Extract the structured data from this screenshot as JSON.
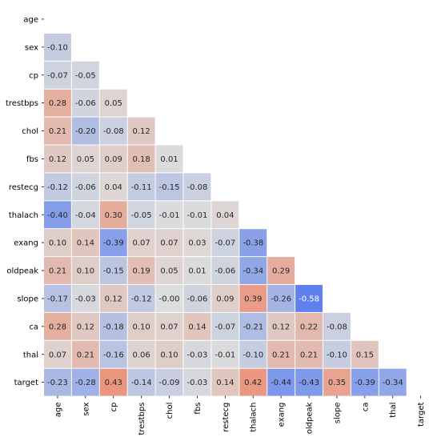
{
  "chart_data": {
    "type": "heatmap",
    "title": "",
    "xlabel": "",
    "ylabel": "",
    "mask": "upper-triangle-and-diagonal",
    "annotation_format": "0.00",
    "color_scale": {
      "min": -0.6,
      "center": 0.0,
      "max": 0.6,
      "low_color": "#5a7ef0",
      "mid_color": "#dcdddd",
      "high_color": "#f07a5a",
      "cmap": "coolwarm"
    },
    "labels": [
      "age",
      "sex",
      "cp",
      "trestbps",
      "chol",
      "fbs",
      "restecg",
      "thalach",
      "exang",
      "oldpeak",
      "slope",
      "ca",
      "thal",
      "target"
    ],
    "lower_triangle": [
      [],
      [
        -0.1
      ],
      [
        -0.07,
        -0.05
      ],
      [
        0.28,
        -0.06,
        0.05
      ],
      [
        0.21,
        -0.2,
        -0.08,
        0.12
      ],
      [
        0.12,
        0.05,
        0.09,
        0.18,
        0.01
      ],
      [
        -0.12,
        -0.06,
        0.04,
        -0.11,
        -0.15,
        -0.08
      ],
      [
        -0.4,
        -0.04,
        0.3,
        -0.05,
        -0.01,
        -0.01,
        0.04
      ],
      [
        0.1,
        0.14,
        -0.39,
        0.07,
        0.07,
        0.03,
        -0.07,
        -0.38
      ],
      [
        0.21,
        0.1,
        -0.15,
        0.19,
        0.05,
        0.01,
        -0.06,
        -0.34,
        0.29
      ],
      [
        -0.17,
        -0.03,
        0.12,
        -0.12,
        -0.0,
        -0.06,
        0.09,
        0.39,
        -0.26,
        -0.58
      ],
      [
        0.28,
        0.12,
        -0.18,
        0.1,
        0.07,
        0.14,
        -0.07,
        -0.21,
        0.12,
        0.22,
        -0.08
      ],
      [
        0.07,
        0.21,
        -0.16,
        0.06,
        0.1,
        -0.03,
        -0.01,
        -0.1,
        0.21,
        0.21,
        -0.1,
        0.15
      ],
      [
        -0.23,
        -0.28,
        0.43,
        -0.14,
        -0.09,
        -0.03,
        0.14,
        0.42,
        -0.44,
        -0.43,
        0.35,
        -0.39,
        -0.34
      ]
    ]
  }
}
